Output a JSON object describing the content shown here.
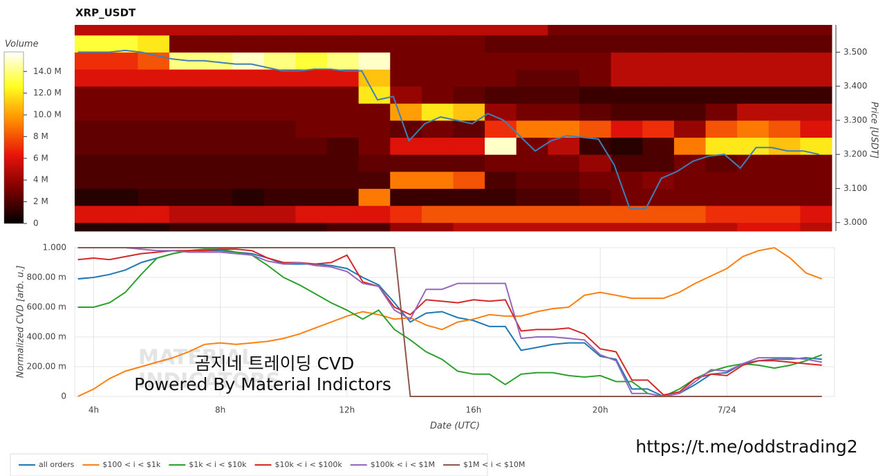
{
  "chart_data": [
    {
      "type": "heatmap",
      "title": "XRP_USDT",
      "xlim": [
        3.4,
        27.4
      ],
      "ylim": [
        2.975,
        3.58
      ],
      "x_bins": [
        3.4,
        4.4,
        5.4,
        6.4,
        7.4,
        8.4,
        9.4,
        10.4,
        11.4,
        12.4,
        13.4,
        14.4,
        15.4,
        16.4,
        17.4,
        18.4,
        19.4,
        20.4,
        21.4,
        22.4,
        23.4,
        24.4,
        25.4,
        26.4,
        27.4
      ],
      "y_bins": [
        2.975,
        3.0,
        3.05,
        3.1,
        3.15,
        3.2,
        3.25,
        3.3,
        3.35,
        3.4,
        3.45,
        3.5,
        3.55,
        3.58
      ],
      "z": [
        [
          1,
          1,
          1,
          1.5,
          1.5,
          1.5,
          1.5,
          1.5,
          2,
          2,
          4,
          4,
          5,
          5,
          5,
          5,
          5,
          5,
          5,
          5,
          5,
          6,
          6,
          5
        ],
        [
          6,
          6,
          6,
          5,
          5,
          5,
          5,
          6,
          6,
          6,
          7,
          8,
          8,
          8,
          8,
          8,
          8,
          8,
          8,
          8,
          7,
          7,
          7,
          6
        ],
        [
          1,
          1,
          1.5,
          1.5,
          1.5,
          1,
          1.5,
          1.5,
          1.5,
          9,
          1.5,
          1.5,
          1.5,
          1.5,
          2,
          2,
          2.5,
          3,
          3,
          3,
          3,
          3,
          3,
          3
        ],
        [
          2,
          2,
          2,
          2,
          2,
          2,
          2,
          2,
          2,
          2,
          9,
          9,
          8,
          2,
          2.5,
          2.5,
          3,
          3,
          3.5,
          3,
          3,
          3,
          3,
          3
        ],
        [
          2,
          2,
          2,
          2,
          2,
          2,
          2,
          2,
          2,
          2.5,
          2.5,
          2.5,
          2.5,
          3,
          3,
          3,
          4,
          2,
          2,
          3,
          2.5,
          3,
          3,
          3
        ],
        [
          2.5,
          2.5,
          2.5,
          2.5,
          2.5,
          2.5,
          2.5,
          2.5,
          2,
          3,
          6,
          6,
          6,
          15,
          3,
          5,
          1.5,
          1,
          2,
          9,
          12,
          12,
          11,
          12
        ],
        [
          2.5,
          2.5,
          2.5,
          2.5,
          2.5,
          2.5,
          2.5,
          3,
          3,
          3,
          2.5,
          3,
          2.5,
          7,
          9,
          9,
          8,
          6,
          7,
          4,
          8,
          9,
          8,
          6
        ],
        [
          3,
          3,
          3,
          3,
          3,
          3,
          3,
          3,
          3,
          3,
          10,
          12,
          11,
          4,
          3,
          3,
          2.5,
          2,
          2,
          2,
          3,
          5,
          5,
          5
        ],
        [
          3,
          3,
          3,
          3,
          3,
          3,
          3,
          3,
          3,
          12,
          4,
          3,
          2.5,
          2,
          2,
          2,
          1.5,
          1.5,
          1.5,
          1.5,
          1.5,
          1.5,
          1.5,
          1.5
        ],
        [
          6,
          6,
          6,
          6,
          6,
          6,
          6,
          6,
          6,
          11,
          3,
          3,
          3,
          3,
          2.5,
          2.5,
          3,
          5,
          5,
          5,
          5,
          5,
          5,
          5
        ],
        [
          7,
          7,
          8,
          14,
          14,
          15,
          14,
          13,
          14,
          15,
          3,
          3,
          3,
          3,
          3,
          3,
          3,
          5,
          5,
          5,
          5,
          5,
          5,
          5
        ],
        [
          13,
          13,
          12,
          3,
          3,
          3,
          3,
          3,
          3,
          3,
          3,
          3,
          3,
          2.5,
          2.5,
          2.5,
          2.5,
          2.5,
          2.5,
          2.5,
          2.5,
          2.5,
          2.5,
          2.5
        ],
        [
          5,
          5,
          5,
          5,
          5,
          5,
          5,
          5,
          5,
          5,
          5,
          5,
          5,
          5,
          5,
          3,
          3,
          3,
          3,
          3,
          3,
          3,
          3,
          3
        ]
      ],
      "zlim": [
        0,
        15.8
      ],
      "colorscale": [
        "#000000",
        "#7a0000",
        "#e8140a",
        "#ff8c00",
        "#ffff20",
        "#ffffff"
      ],
      "colorbar_label": "Volume",
      "colorbar_ticks": [
        0,
        {
          "value": 2,
          "label": "2 M"
        },
        {
          "value": 4,
          "label": "4 M"
        },
        {
          "value": 6,
          "label": "6 M"
        },
        {
          "value": 8,
          "label": "8 M"
        },
        {
          "value": 10,
          "label": "10.0 M"
        },
        {
          "value": 12,
          "label": "12.0 M"
        },
        {
          "value": 14,
          "label": "14.0 M"
        }
      ],
      "y_label": "Price [USDT]",
      "yticks": [
        {
          "value": 3.0,
          "label": "3.000"
        },
        {
          "value": 3.1,
          "label": "3.100"
        },
        {
          "value": 3.2,
          "label": "3.200"
        },
        {
          "value": 3.3,
          "label": "3.300"
        },
        {
          "value": 3.4,
          "label": "3.400"
        },
        {
          "value": 3.5,
          "label": "3.500"
        }
      ],
      "line": {
        "color": "#3f7fb8",
        "x": [
          3.5,
          4,
          4.5,
          5,
          5.5,
          6,
          6.5,
          7,
          7.5,
          8,
          8.5,
          9,
          9.5,
          10,
          10.5,
          11,
          11.5,
          12,
          12.5,
          13,
          13.5,
          14,
          14.5,
          15,
          15.5,
          16,
          16.5,
          17,
          17.5,
          18,
          18.5,
          19,
          19.5,
          20,
          20.5,
          21,
          21.5,
          22,
          22.5,
          23,
          23.5,
          24,
          24.5,
          25,
          25.5,
          26,
          26.5,
          27
        ],
        "values": [
          3.5,
          3.5,
          3.5,
          3.505,
          3.5,
          3.49,
          3.48,
          3.475,
          3.475,
          3.47,
          3.465,
          3.465,
          3.455,
          3.445,
          3.445,
          3.45,
          3.45,
          3.445,
          3.445,
          3.36,
          3.37,
          3.24,
          3.29,
          3.31,
          3.3,
          3.29,
          3.32,
          3.3,
          3.255,
          3.21,
          3.24,
          3.255,
          3.25,
          3.245,
          3.17,
          3.04,
          3.04,
          3.13,
          3.15,
          3.18,
          3.195,
          3.2,
          3.16,
          3.22,
          3.22,
          3.21,
          3.21,
          3.2
        ]
      }
    },
    {
      "type": "line",
      "xlim": [
        3.4,
        27.4
      ],
      "ylim": [
        0,
        1
      ],
      "x": [
        3.5,
        4,
        4.5,
        5,
        5.5,
        6,
        6.5,
        7,
        7.5,
        8,
        8.5,
        9,
        9.5,
        10,
        10.5,
        11,
        11.5,
        12,
        12.5,
        13,
        13.5,
        14,
        14.5,
        15,
        15.5,
        16,
        16.5,
        17,
        17.5,
        18,
        18.5,
        19,
        19.5,
        20,
        20.5,
        21,
        21.5,
        22,
        22.5,
        23,
        23.5,
        24,
        24.5,
        25,
        25.5,
        26,
        26.5,
        27
      ],
      "xticks": [
        {
          "value": 4,
          "label": "4h"
        },
        {
          "value": 8,
          "label": "8h"
        },
        {
          "value": 12,
          "label": "12h"
        },
        {
          "value": 16,
          "label": "16h"
        },
        {
          "value": 20,
          "label": "20h"
        },
        {
          "value": 24,
          "label": "7/24"
        }
      ],
      "yticks": [
        0,
        {
          "value": 0.2,
          "label": "200.00 m"
        },
        {
          "value": 0.4,
          "label": "400.00 m"
        },
        {
          "value": 0.6,
          "label": "600.00 m"
        },
        {
          "value": 0.8,
          "label": "800.00 m"
        },
        {
          "value": 1,
          "label": "1.000"
        }
      ],
      "x_label": "Date (UTC)",
      "y_label": "Normalized CVD [arb. u.]",
      "grid": true,
      "series": [
        {
          "name": "all orders",
          "color": "#1f77b4",
          "values": [
            0.79,
            0.8,
            0.82,
            0.85,
            0.9,
            0.93,
            0.96,
            0.98,
            0.98,
            0.98,
            0.97,
            0.96,
            0.93,
            0.89,
            0.89,
            0.89,
            0.88,
            0.86,
            0.8,
            0.75,
            0.63,
            0.5,
            0.56,
            0.57,
            0.53,
            0.51,
            0.47,
            0.47,
            0.31,
            0.33,
            0.35,
            0.36,
            0.36,
            0.27,
            0.25,
            0.05,
            0.05,
            0,
            0.02,
            0.08,
            0.15,
            0.16,
            0.22,
            0.24,
            0.25,
            0.25,
            0.26,
            0.25
          ]
        },
        {
          "name": "$100 < i < $1k",
          "color": "#ff7f0e",
          "values": [
            0,
            0.05,
            0.12,
            0.17,
            0.2,
            0.23,
            0.26,
            0.3,
            0.35,
            0.36,
            0.35,
            0.36,
            0.37,
            0.39,
            0.42,
            0.46,
            0.5,
            0.54,
            0.57,
            0.55,
            0.52,
            0.53,
            0.48,
            0.45,
            0.5,
            0.52,
            0.55,
            0.54,
            0.54,
            0.57,
            0.59,
            0.6,
            0.68,
            0.7,
            0.68,
            0.66,
            0.66,
            0.66,
            0.7,
            0.76,
            0.81,
            0.86,
            0.94,
            0.98,
            1,
            0.93,
            0.83,
            0.79
          ]
        },
        {
          "name": "$1k < i < $10k",
          "color": "#2ca02c",
          "values": [
            0.6,
            0.6,
            0.63,
            0.7,
            0.82,
            0.93,
            0.96,
            0.98,
            0.99,
            0.99,
            0.97,
            0.95,
            0.88,
            0.8,
            0.75,
            0.69,
            0.63,
            0.58,
            0.52,
            0.58,
            0.45,
            0.38,
            0.3,
            0.25,
            0.17,
            0.15,
            0.15,
            0.08,
            0.15,
            0.16,
            0.16,
            0.14,
            0.13,
            0.14,
            0.1,
            0.1,
            0.02,
            0,
            0.05,
            0.12,
            0.17,
            0.2,
            0.22,
            0.21,
            0.19,
            0.21,
            0.24,
            0.28
          ]
        },
        {
          "name": "$10k < i < $100k",
          "color": "#d62728",
          "values": [
            0.92,
            0.93,
            0.92,
            0.94,
            0.96,
            0.97,
            0.98,
            0.98,
            0.98,
            0.99,
            0.99,
            0.98,
            0.93,
            0.9,
            0.9,
            0.89,
            0.9,
            0.95,
            0.77,
            0.74,
            0.6,
            0.55,
            0.65,
            0.64,
            0.63,
            0.65,
            0.64,
            0.65,
            0.44,
            0.45,
            0.45,
            0.46,
            0.42,
            0.32,
            0.3,
            0.11,
            0.11,
            0.01,
            0.03,
            0.12,
            0.15,
            0.14,
            0.21,
            0.24,
            0.24,
            0.23,
            0.22,
            0.21
          ]
        },
        {
          "name": "$100k < i < $1M",
          "color": "#9467bd",
          "values": [
            1,
            1,
            1,
            1,
            0.99,
            0.98,
            0.98,
            0.97,
            0.97,
            0.97,
            0.96,
            0.95,
            0.91,
            0.89,
            0.9,
            0.88,
            0.87,
            0.84,
            0.76,
            0.74,
            0.58,
            0.52,
            0.72,
            0.72,
            0.76,
            0.76,
            0.76,
            0.76,
            0.39,
            0.4,
            0.4,
            0.39,
            0.38,
            0.28,
            0.24,
            0.02,
            0.02,
            0,
            0.02,
            0.1,
            0.18,
            0.17,
            0.22,
            0.26,
            0.26,
            0.26,
            0.25,
            0.23
          ]
        },
        {
          "name": "$1M < i < $10M",
          "color": "#8c564b",
          "values": [
            1,
            1,
            1,
            1,
            1,
            1,
            1,
            1,
            1,
            1,
            1,
            1,
            1,
            1,
            1,
            1,
            1,
            1,
            1,
            1,
            1,
            0,
            0,
            0,
            0,
            0,
            0,
            0,
            0,
            0,
            0,
            0,
            0,
            0,
            0,
            0,
            0,
            0,
            0,
            0,
            0,
            0,
            0,
            0,
            0,
            0,
            0,
            0
          ]
        }
      ],
      "annotations": [
        "MATERIAL",
        "INDICATORS",
        "곰지네 트레이딩 CVD",
        "Powered By Material Indictors",
        "https://t.me/oddstrading2"
      ]
    }
  ]
}
